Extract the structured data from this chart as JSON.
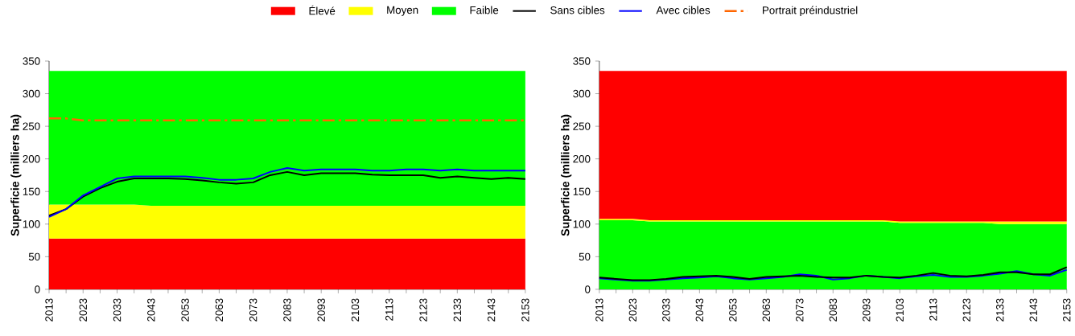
{
  "chart_data": [
    {
      "type": "area",
      "stacked": true,
      "legend": "top",
      "grid": false,
      "ylabel": "Superficie (milliers ha)",
      "ylim": [
        0,
        350
      ],
      "yticks": [
        0,
        50,
        100,
        150,
        200,
        250,
        300,
        350
      ],
      "categories": [
        "2013",
        null,
        "2023",
        null,
        "2033",
        null,
        "2043",
        null,
        "2053",
        null,
        "2063",
        null,
        "2073",
        null,
        "2083",
        null,
        "2093",
        null,
        "2103",
        null,
        "2113",
        null,
        "2123",
        null,
        "2133",
        null,
        "2143",
        null,
        "2153"
      ],
      "series": [
        {
          "name": "Élevé",
          "color": "#ff0000",
          "values": [
            78,
            78,
            78,
            78,
            78,
            78,
            78,
            78,
            78,
            78,
            78,
            78,
            78,
            78,
            78,
            78,
            78,
            78,
            78,
            78,
            78,
            78,
            78,
            78,
            78,
            78,
            78,
            78,
            78
          ]
        },
        {
          "name": "Moyen",
          "color": "#ffff00",
          "values": [
            52,
            52,
            52,
            52,
            52,
            52,
            50,
            50,
            50,
            50,
            50,
            50,
            50,
            50,
            50,
            50,
            50,
            50,
            50,
            50,
            50,
            50,
            50,
            50,
            50,
            50,
            50,
            50,
            50
          ]
        },
        {
          "name": "Faible",
          "color": "#00ff00",
          "values": [
            205,
            205,
            205,
            205,
            205,
            205,
            207,
            207,
            207,
            207,
            207,
            207,
            207,
            207,
            207,
            207,
            207,
            207,
            207,
            207,
            207,
            207,
            207,
            207,
            207,
            207,
            207,
            207,
            207
          ]
        },
        {
          "name": "Sans cibles",
          "type": "line",
          "color": "#000000",
          "values": [
            113,
            123,
            142,
            155,
            165,
            170,
            170,
            170,
            169,
            167,
            164,
            162,
            164,
            175,
            180,
            175,
            178,
            178,
            178,
            176,
            175,
            175,
            175,
            171,
            173,
            171,
            169,
            171,
            169
          ]
        },
        {
          "name": "Avec cibles",
          "type": "line",
          "color": "#0000ff",
          "values": [
            111,
            123,
            144,
            157,
            170,
            173,
            173,
            173,
            173,
            171,
            168,
            168,
            170,
            180,
            186,
            182,
            184,
            184,
            184,
            182,
            182,
            184,
            184,
            182,
            184,
            182,
            182,
            182,
            182
          ]
        },
        {
          "name": "Portrait préindustriel",
          "type": "line",
          "line_style": "dashed",
          "color": "#ff6600",
          "values": [
            262,
            262,
            259,
            259,
            259,
            259,
            259,
            259,
            259,
            259,
            259,
            259,
            259,
            259,
            259,
            259,
            259,
            259,
            259,
            259,
            259,
            259,
            259,
            259,
            259,
            259,
            259,
            259,
            259
          ]
        }
      ]
    },
    {
      "type": "area",
      "stacked": true,
      "grid": false,
      "ylabel": "Superficie (milliers ha)",
      "ylim": [
        0,
        350
      ],
      "yticks": [
        0,
        50,
        100,
        150,
        200,
        250,
        300,
        350
      ],
      "categories": [
        "2013",
        null,
        "2023",
        null,
        "2033",
        null,
        "2043",
        null,
        "2053",
        null,
        "2063",
        null,
        "2073",
        null,
        "2083",
        null,
        "2093",
        null,
        "2103",
        null,
        "2113",
        null,
        "2123",
        null,
        "2133",
        null,
        "2143",
        null,
        "2153"
      ],
      "series": [
        {
          "color": "#00ff00",
          "values": [
            106,
            106,
            106,
            104,
            104,
            104,
            104,
            104,
            104,
            104,
            104,
            104,
            104,
            104,
            104,
            104,
            104,
            104,
            102,
            102,
            102,
            102,
            102,
            102,
            100,
            100,
            100,
            100,
            100
          ]
        },
        {
          "color": "#ffff00",
          "values": [
            2,
            2,
            2,
            2,
            2,
            2,
            2,
            2,
            2,
            2,
            2,
            2,
            2,
            2,
            2,
            2,
            2,
            2,
            2,
            2,
            2,
            2,
            2,
            2,
            4,
            4,
            4,
            4,
            4
          ]
        },
        {
          "color": "#ff0000",
          "values": [
            227,
            227,
            227,
            229,
            229,
            229,
            229,
            229,
            229,
            229,
            229,
            229,
            229,
            229,
            229,
            229,
            229,
            229,
            231,
            231,
            231,
            231,
            231,
            231,
            231,
            231,
            231,
            231,
            231
          ]
        },
        {
          "type": "line",
          "color": "#0000ff",
          "values": [
            17,
            15,
            13,
            13,
            15,
            17,
            18,
            20,
            17,
            15,
            17,
            19,
            23,
            21,
            15,
            17,
            21,
            19,
            17,
            20,
            22,
            19,
            19,
            21,
            24,
            28,
            23,
            21,
            30
          ]
        },
        {
          "type": "line",
          "color": "#000000",
          "values": [
            18,
            16,
            14,
            14,
            16,
            19,
            20,
            21,
            19,
            16,
            19,
            20,
            21,
            19,
            18,
            18,
            21,
            19,
            18,
            21,
            25,
            21,
            20,
            22,
            26,
            26,
            23,
            23,
            34
          ]
        }
      ]
    }
  ]
}
